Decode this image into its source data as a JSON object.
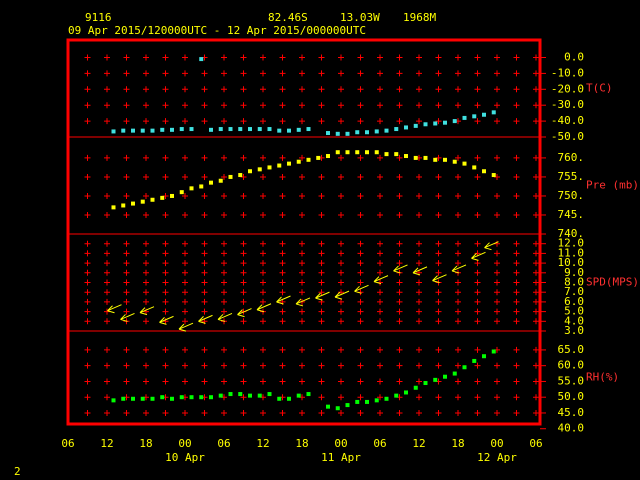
{
  "header": {
    "station": "9116",
    "lat": "82.46S",
    "lon": "13.03W",
    "elevation": "1968M",
    "period": "09 Apr 2015/120000UTC - 12 Apr 2015/000000UTC"
  },
  "page_number": "2",
  "chart_data": [
    {
      "type": "scatter",
      "ylabel": "T(C)",
      "color": "#40e0e0",
      "xlim": [
        6,
        78
      ],
      "ylim": [
        -50,
        11
      ],
      "yticks": [
        {
          "value": 0,
          "label": "0.0"
        },
        {
          "value": -10,
          "label": "-10.0"
        },
        {
          "value": -20,
          "label": "-20.0"
        },
        {
          "value": -30,
          "label": "-30.0"
        },
        {
          "value": -40,
          "label": "-40.0"
        },
        {
          "value": -50,
          "label": "-50.0"
        }
      ],
      "x": [
        13,
        14.5,
        16,
        17.5,
        19,
        20.5,
        22,
        23.5,
        25,
        26.5,
        28,
        29.5,
        31,
        32.5,
        34,
        35.5,
        37,
        38.5,
        40,
        41.5,
        43,
        44.5,
        46,
        47.5,
        49,
        50.5,
        52,
        53.5,
        55,
        56.5,
        58,
        59.5,
        61,
        62.5,
        64,
        65.5,
        67,
        68.5,
        70,
        71.5
      ],
      "values": [
        -46.5,
        -46,
        -46,
        -46,
        -46,
        -45.5,
        -45.5,
        -45,
        -45,
        -1,
        -45.5,
        -45,
        -45,
        -45,
        -45,
        -45,
        -45,
        -46,
        -46,
        -45.5,
        -45,
        null,
        -47.5,
        -48,
        -48,
        -47,
        -47,
        -46.5,
        -46,
        -45,
        -44,
        -43,
        -42,
        -41.5,
        -41,
        -40,
        -38,
        -37,
        -36,
        -34.5
      ]
    },
    {
      "type": "scatter",
      "ylabel": "Pre (mb)",
      "color": "#ffff00",
      "xlim": [
        6,
        78
      ],
      "ylim": [
        740,
        765.5
      ],
      "yticks": [
        {
          "value": 760,
          "label": "760."
        },
        {
          "value": 755,
          "label": "755."
        },
        {
          "value": 750,
          "label": "750."
        },
        {
          "value": 745,
          "label": "745."
        },
        {
          "value": 740,
          "label": "740."
        }
      ],
      "x": [
        13,
        14.5,
        16,
        17.5,
        19,
        20.5,
        22,
        23.5,
        25,
        26.5,
        28,
        29.5,
        31,
        32.5,
        34,
        35.5,
        37,
        38.5,
        40,
        41.5,
        43,
        44.5,
        46,
        47.5,
        49,
        50.5,
        52,
        53.5,
        55,
        56.5,
        58,
        59.5,
        61,
        62.5,
        64,
        65.5,
        67,
        68.5,
        70,
        71.5
      ],
      "values": [
        747,
        747.5,
        748,
        748.5,
        749,
        749.5,
        750,
        751,
        752,
        752.5,
        753.5,
        754,
        755,
        755.5,
        756.5,
        757,
        757.5,
        758,
        758.5,
        759,
        759.5,
        760,
        760.5,
        761.5,
        761.5,
        761.5,
        761.5,
        761.5,
        761,
        761,
        760.5,
        760,
        760,
        759.5,
        759.5,
        759,
        758.5,
        757.5,
        756.5,
        755.5
      ]
    },
    {
      "type": "quiver",
      "ylabel": "SPD(MPS)",
      "color": "#ffff00",
      "xlim": [
        6,
        78
      ],
      "ylim": [
        3,
        13
      ],
      "yticks": [
        {
          "value": 12,
          "label": "12.0"
        },
        {
          "value": 11,
          "label": "11.0"
        },
        {
          "value": 10,
          "label": "10.0"
        },
        {
          "value": 9,
          "label": "9.0"
        },
        {
          "value": 8,
          "label": "8.0"
        },
        {
          "value": 7,
          "label": "7.0"
        },
        {
          "value": 6,
          "label": "6.0"
        },
        {
          "value": 5,
          "label": "5.0"
        },
        {
          "value": 4,
          "label": "4.0"
        },
        {
          "value": 3,
          "label": "3.0"
        }
      ],
      "x": [
        13,
        15,
        18,
        21,
        24,
        27,
        30,
        33,
        36,
        39,
        42,
        45,
        48,
        51,
        54,
        57,
        60,
        63,
        66,
        69,
        71
      ],
      "values": [
        5.4,
        4.5,
        5.2,
        4.2,
        3.5,
        4.3,
        4.5,
        5,
        5.5,
        6.3,
        6.1,
        6.7,
        6.8,
        7.4,
        8.4,
        9.5,
        9.3,
        8.5,
        9.5,
        10.8,
        11.9
      ]
    },
    {
      "type": "scatter",
      "ylabel": "RH(%)",
      "color": "#00ff00",
      "xlim": [
        6,
        78
      ],
      "ylim": [
        41.5,
        71
      ],
      "yticks": [
        {
          "value": 65,
          "label": "65.0"
        },
        {
          "value": 60,
          "label": "60.0"
        },
        {
          "value": 55,
          "label": "55.0"
        },
        {
          "value": 50,
          "label": "50.0"
        },
        {
          "value": 45,
          "label": "45.0"
        },
        {
          "value": 40,
          "label": "40.0"
        }
      ],
      "xticks": [
        {
          "value": 6,
          "label": "06"
        },
        12,
        18,
        {
          "value": 24,
          "label": "00"
        },
        {
          "value": 30,
          "label": "06"
        },
        {
          "value": 36,
          "label": "12"
        },
        {
          "value": 42,
          "label": "18"
        },
        {
          "value": 48,
          "label": "00"
        },
        {
          "value": 54,
          "label": "06"
        },
        {
          "value": 60,
          "label": "12"
        },
        {
          "value": 66,
          "label": "18"
        },
        {
          "value": 72,
          "label": "00"
        },
        {
          "value": 78,
          "label": "06"
        }
      ],
      "date_labels": [
        {
          "value": 24,
          "label": "10 Apr"
        },
        {
          "value": 48,
          "label": "11 Apr"
        },
        {
          "value": 72,
          "label": "12 Apr"
        }
      ],
      "x": [
        13,
        14.5,
        16,
        17.5,
        19,
        20.5,
        22,
        23.5,
        25,
        26.5,
        28,
        29.5,
        31,
        32.5,
        34,
        35.5,
        37,
        38.5,
        40,
        41.5,
        43,
        44.5,
        46,
        47.5,
        49,
        50.5,
        52,
        53.5,
        55,
        56.5,
        58,
        59.5,
        61,
        62.5,
        64,
        65.5,
        67,
        68.5,
        70,
        71.5
      ],
      "values": [
        49,
        49.5,
        49.5,
        49.5,
        49.5,
        50,
        49.5,
        50,
        50,
        50,
        50,
        50.5,
        51,
        51,
        50.5,
        50.5,
        51,
        49.5,
        49.5,
        50.5,
        51,
        null,
        47,
        46.5,
        47.5,
        48.5,
        48.5,
        49,
        49.5,
        50.5,
        51.5,
        53,
        54.5,
        55.5,
        56.5,
        57.5,
        59.5,
        61.5,
        63,
        64.5
      ]
    }
  ]
}
